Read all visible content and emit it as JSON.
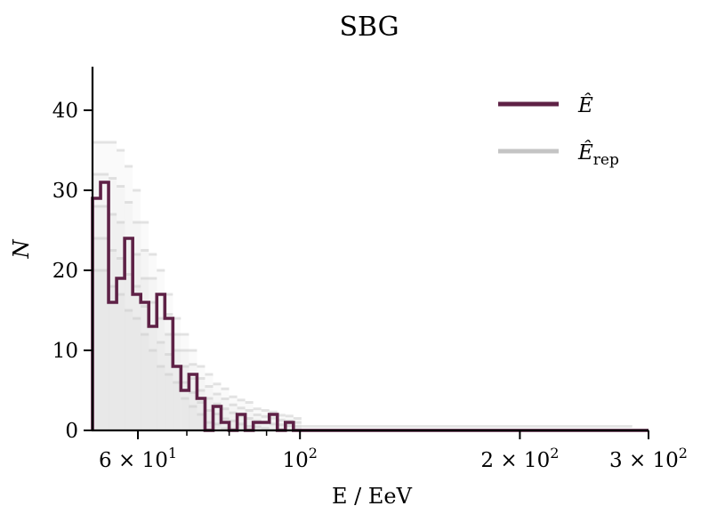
{
  "chart_data": {
    "type": "histogram-step",
    "title": "SBG",
    "xlabel": "E / EeV",
    "ylabel": "N",
    "xscale": "log",
    "xlim": [
      52,
      300
    ],
    "ylim": [
      0,
      45
    ],
    "yticks": [
      0,
      10,
      20,
      30,
      40
    ],
    "xticks_major": [
      {
        "value": 60,
        "label": "6 × 10",
        "exp": "1"
      },
      {
        "value": 100,
        "label": "10",
        "exp": "2"
      },
      {
        "value": 200,
        "label": "2 × 10",
        "exp": "2"
      },
      {
        "value": 300,
        "label": "3 × 10",
        "exp": "2"
      }
    ],
    "xticks_minor": [
      70,
      80,
      90
    ],
    "legend": {
      "position": "top-right",
      "entries": [
        {
          "label": "Ê",
          "color": "#5e2146"
        },
        {
          "label": "Ê",
          "sub": "rep",
          "color": "#c4c4c4"
        }
      ]
    },
    "bin_width_log10": 0.011,
    "series": [
      {
        "name": "Ê",
        "color": "#5e2146",
        "counts": [
          29,
          31,
          16,
          19,
          24,
          17,
          16,
          13,
          17,
          14,
          8,
          5,
          7,
          4,
          0,
          3,
          1,
          0,
          2,
          0,
          1,
          1,
          2,
          0,
          1,
          0
        ]
      },
      {
        "name": "Ê_rep",
        "color": "#c4c4c4",
        "mean": [
          28,
          28,
          27,
          26,
          24,
          22,
          19,
          16,
          14,
          12,
          10,
          8,
          6.5,
          5,
          4,
          3.3,
          2.7,
          2.2,
          1.8,
          1.5,
          1.2,
          1,
          0.8,
          0.7,
          0.6,
          0.5
        ],
        "spread": [
          8,
          8,
          9,
          9,
          9,
          8,
          7,
          6,
          6,
          5,
          4,
          4,
          3.5,
          3,
          3,
          2.5,
          2.5,
          2,
          2,
          2,
          1.5,
          1.5,
          1.5,
          1.2,
          1.2,
          1
        ]
      }
    ]
  }
}
